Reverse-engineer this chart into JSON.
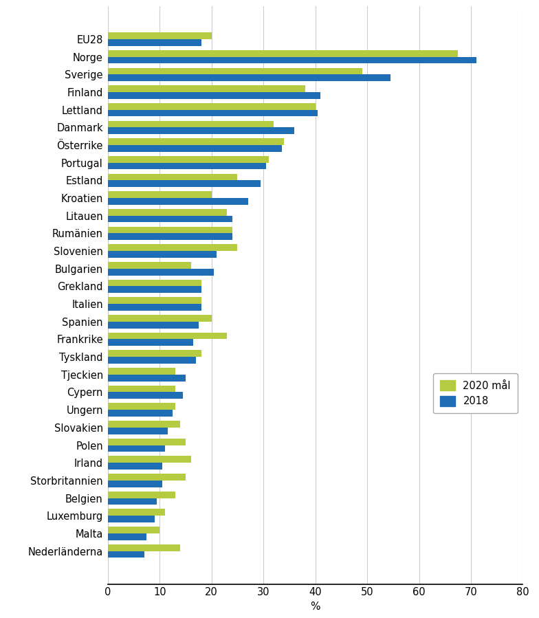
{
  "title": "",
  "xlabel": "%",
  "categories": [
    "EU28",
    "Norge",
    "Sverige",
    "Finland",
    "Lettland",
    "Danmark",
    "Österrike",
    "Portugal",
    "Estland",
    "Kroatien",
    "Litauen",
    "Rumänien",
    "Slovenien",
    "Bulgarien",
    "Grekland",
    "Italien",
    "Spanien",
    "Frankrike",
    "Tyskland",
    "Tjeckien",
    "Cypern",
    "Ungern",
    "Slovakien",
    "Polen",
    "Irland",
    "Storbritannien",
    "Belgien",
    "Luxemburg",
    "Malta",
    "Nederländerna"
  ],
  "values_2020": [
    20,
    67.5,
    49,
    38,
    40,
    32,
    34,
    31,
    25,
    20,
    23,
    24,
    25,
    16,
    18,
    18,
    20,
    23,
    18,
    13,
    13,
    13,
    14,
    15,
    16,
    15,
    13,
    11,
    10,
    14
  ],
  "values_2018": [
    18,
    71,
    54.5,
    41,
    40.5,
    36,
    33.5,
    30.5,
    29.5,
    27,
    24,
    24,
    21,
    20.5,
    18,
    18,
    17.5,
    16.5,
    17,
    15,
    14.5,
    12.5,
    11.5,
    11,
    10.5,
    10.5,
    9.5,
    9,
    7.5,
    7
  ],
  "color_2020": "#b5cc42",
  "color_2018": "#1f6eb5",
  "legend_2020": "2020 mål",
  "legend_2018": "2018",
  "xlim": [
    0,
    80
  ],
  "xticks": [
    0,
    10,
    20,
    30,
    40,
    50,
    60,
    70,
    80
  ],
  "background_color": "#ffffff",
  "grid_color": "#cccccc"
}
